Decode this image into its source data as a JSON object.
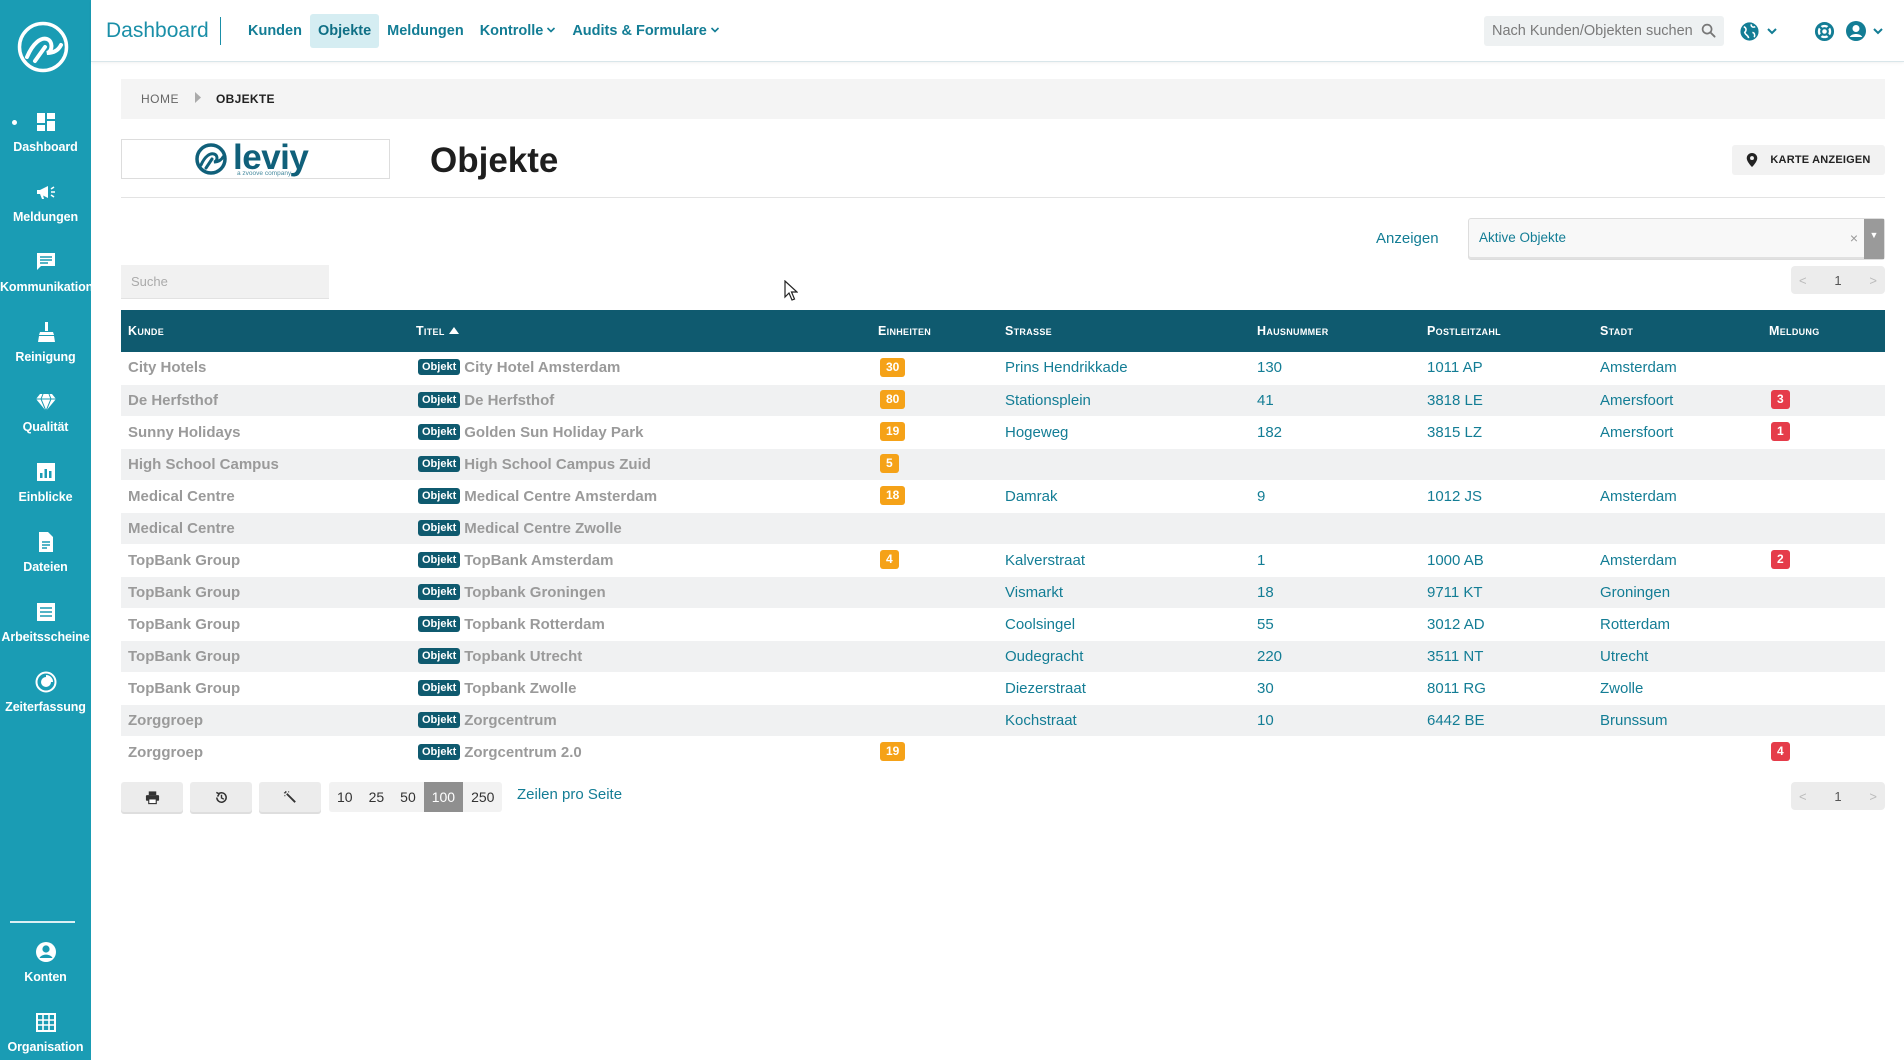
{
  "header": {
    "title": "Dashboard",
    "nav": [
      {
        "label": "Kunden",
        "active": false,
        "dropdown": false
      },
      {
        "label": "Objekte",
        "active": true,
        "dropdown": false
      },
      {
        "label": "Meldungen",
        "active": false,
        "dropdown": false
      },
      {
        "label": "Kontrolle",
        "active": false,
        "dropdown": true
      },
      {
        "label": "Audits & Formulare",
        "active": false,
        "dropdown": true
      }
    ],
    "search_placeholder": "Nach Kunden/Objekten suchen",
    "icons": [
      "globe-icon",
      "lifebuoy-icon",
      "user-icon"
    ]
  },
  "sidebar": {
    "items": [
      {
        "label": "Dashboard",
        "icon": "dashboard-icon",
        "active": true
      },
      {
        "label": "Meldungen",
        "icon": "megaphone-icon"
      },
      {
        "label": "Kommunikation",
        "icon": "chat-icon"
      },
      {
        "label": "Reinigung",
        "icon": "broom-icon"
      },
      {
        "label": "Qualität",
        "icon": "diamond-icon"
      },
      {
        "label": "Einblicke",
        "icon": "chart-icon"
      },
      {
        "label": "Dateien",
        "icon": "file-icon"
      },
      {
        "label": "Arbeitsscheine",
        "icon": "list-icon"
      },
      {
        "label": "Zeiterfassung",
        "icon": "clock-icon"
      }
    ],
    "bottom_items": [
      {
        "label": "Konten",
        "icon": "account-icon"
      },
      {
        "label": "Organisation",
        "icon": "building-icon"
      }
    ]
  },
  "breadcrumb": {
    "home": "HOME",
    "current": "OBJEKTE"
  },
  "page": {
    "title": "Objekte",
    "logo_text": "leviy",
    "logo_subtext": "a zvoove company",
    "map_button": "KARTE ANZEIGEN"
  },
  "filter": {
    "label": "Anzeigen",
    "value": "Aktive Objekte",
    "clear": "×"
  },
  "table": {
    "search_placeholder": "Suche",
    "columns": [
      "Kunde",
      "Titel",
      "Einheiten",
      "Strasse",
      "Hausnummer",
      "Postleitzahl",
      "Stadt",
      "Meldung"
    ],
    "object_tag": "Objekt",
    "rows": [
      {
        "kunde": "City Hotels",
        "titel": "City Hotel Amsterdam",
        "einheiten": "30",
        "strasse": "Prins Hendrikkade",
        "hausnummer": "130",
        "plz": "1011 AP",
        "stadt": "Amsterdam",
        "meldung": ""
      },
      {
        "kunde": "De Herfsthof",
        "titel": "De Herfsthof",
        "einheiten": "80",
        "strasse": "Stationsplein",
        "hausnummer": "41",
        "plz": "3818 LE",
        "stadt": "Amersfoort",
        "meldung": "3"
      },
      {
        "kunde": "Sunny Holidays",
        "titel": "Golden Sun Holiday Park",
        "einheiten": "19",
        "strasse": "Hogeweg",
        "hausnummer": "182",
        "plz": "3815 LZ",
        "stadt": "Amersfoort",
        "meldung": "1"
      },
      {
        "kunde": "High School Campus",
        "titel": "High School Campus Zuid",
        "einheiten": "5",
        "strasse": "",
        "hausnummer": "",
        "plz": "",
        "stadt": "",
        "meldung": ""
      },
      {
        "kunde": "Medical Centre",
        "titel": "Medical Centre Amsterdam",
        "einheiten": "18",
        "strasse": "Damrak",
        "hausnummer": "9",
        "plz": "1012 JS",
        "stadt": "Amsterdam",
        "meldung": ""
      },
      {
        "kunde": "Medical Centre",
        "titel": "Medical Centre Zwolle",
        "einheiten": "",
        "strasse": "",
        "hausnummer": "",
        "plz": "",
        "stadt": "",
        "meldung": ""
      },
      {
        "kunde": "TopBank Group",
        "titel": "TopBank Amsterdam",
        "einheiten": "4",
        "strasse": "Kalverstraat",
        "hausnummer": "1",
        "plz": "1000 AB",
        "stadt": "Amsterdam",
        "meldung": "2"
      },
      {
        "kunde": "TopBank Group",
        "titel": "Topbank Groningen",
        "einheiten": "",
        "strasse": "Vismarkt",
        "hausnummer": "18",
        "plz": "9711 KT",
        "stadt": "Groningen",
        "meldung": ""
      },
      {
        "kunde": "TopBank Group",
        "titel": "Topbank Rotterdam",
        "einheiten": "",
        "strasse": "Coolsingel",
        "hausnummer": "55",
        "plz": "3012 AD",
        "stadt": "Rotterdam",
        "meldung": ""
      },
      {
        "kunde": "TopBank Group",
        "titel": "Topbank Utrecht",
        "einheiten": "",
        "strasse": "Oudegracht",
        "hausnummer": "220",
        "plz": "3511 NT",
        "stadt": "Utrecht",
        "meldung": ""
      },
      {
        "kunde": "TopBank Group",
        "titel": "Topbank Zwolle",
        "einheiten": "",
        "strasse": "Diezerstraat",
        "hausnummer": "30",
        "plz": "8011 RG",
        "stadt": "Zwolle",
        "meldung": ""
      },
      {
        "kunde": "Zorggroep",
        "titel": "Zorgcentrum",
        "einheiten": "",
        "strasse": "Kochstraat",
        "hausnummer": "10",
        "plz": "6442 BE",
        "stadt": "Brunssum",
        "meldung": ""
      },
      {
        "kunde": "Zorggroep",
        "titel": "Zorgcentrum 2.0",
        "einheiten": "19",
        "strasse": "",
        "hausnummer": "",
        "plz": "",
        "stadt": "",
        "meldung": "4"
      }
    ]
  },
  "pagination": {
    "prev": "<",
    "page": "1",
    "next": ">"
  },
  "footer": {
    "page_sizes": [
      "10",
      "25",
      "50",
      "100",
      "250"
    ],
    "active_page_size": "100",
    "rows_label": "Zeilen pro Seite"
  },
  "colors": {
    "sidebar": "#1a9cb4",
    "table_header": "#0f5a6f",
    "accent_text": "#137d95",
    "badge_orange": "#f5a218",
    "badge_red": "#e53c4a"
  }
}
